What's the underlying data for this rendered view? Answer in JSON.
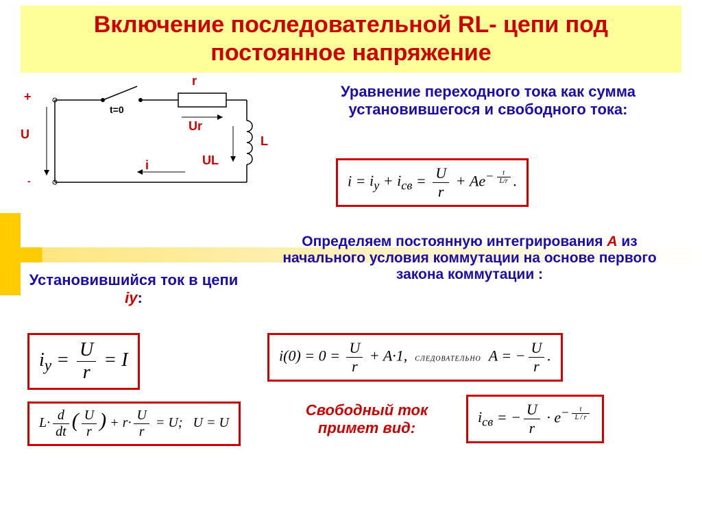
{
  "title": "Включение последовательной RL- цепи под постоянное напряжение",
  "circuit": {
    "label_r_top": "r",
    "label_plus": "+",
    "label_U": "U",
    "label_minus": "-",
    "label_t0": "t=0",
    "label_Ur": "Ur",
    "label_UL": "UL",
    "label_L": "L",
    "label_i": "i",
    "strokeColor": "#000000",
    "labelColor": "#cc0000"
  },
  "desc1": "Уравнение переходного тока как сумма установившегося и свободного тока:",
  "formula1_html": "<i>i</i> = <i>i<sub>у</sub></i> + <i>i<sub>св</sub></i> = <span class='frac'><span class='num'><i>U</i></span><span class='den'><i>r</i></span></span> + <i>Ae</i><sup>−<span class='frac' style='font-size:10px'><span class='num'>t</span><span class='den'>L/r</span></span></sup>.",
  "heading2_a": "Установившийся ток в цепи ",
  "heading2_b": "iу",
  "heading2_c": ":",
  "desc3_a": "Определяем постоянную интегрирования ",
  "desc3_b": "А",
  "desc3_c": " из начального условия коммутации на основе первого закона коммутации :",
  "formula2_html": "<i>i<sub>у</sub></i> = <span class='frac'><span class='num'><i>U</i></span><span class='den'><i>r</i></span></span> = <i>I</i>",
  "formula3_html": "<i>i</i>(0) = 0 = <span class='frac'><span class='num'><i>U</i></span><span class='den'><i>r</i></span></span> + <i>A</i>·1, &nbsp;<span class='small-it'>следовательно</span>&nbsp; <i>A</i> = −<span class='frac'><span class='num'><i>U</i></span><span class='den'><i>r</i></span></span>.",
  "formula4_html": "<i>L</i>·<span class='frac'><span class='num'><i>d</i></span><span class='den'><i>dt</i></span></span><span style='font-size:30px'>(</span><span class='frac'><span class='num'><i>U</i></span><span class='den'><i>r</i></span></span><span style='font-size:30px'>)</span> + <i>r</i>·<span class='frac'><span class='num'><i>U</i></span><span class='den'><i>r</i></span></span> = <i>U</i>; &nbsp; <i>U</i> = <i>U</i>",
  "heading4": "Свободный ток примет вид:",
  "formula5_html": "<i>i<sub>св</sub></i> = −<span class='frac'><span class='num'><i>U</i></span><span class='den'><i>r</i></span></span> · <i>e</i><sup>−<span class='frac' style='font-size:10px'><span class='num'>t</span><span class='den'>L / r</span></span></sup>",
  "style": {
    "titleBg": "#ffff99",
    "titleColor": "#cc0000",
    "borderColor": "#cc0000",
    "textColor": "#1a0dab"
  }
}
